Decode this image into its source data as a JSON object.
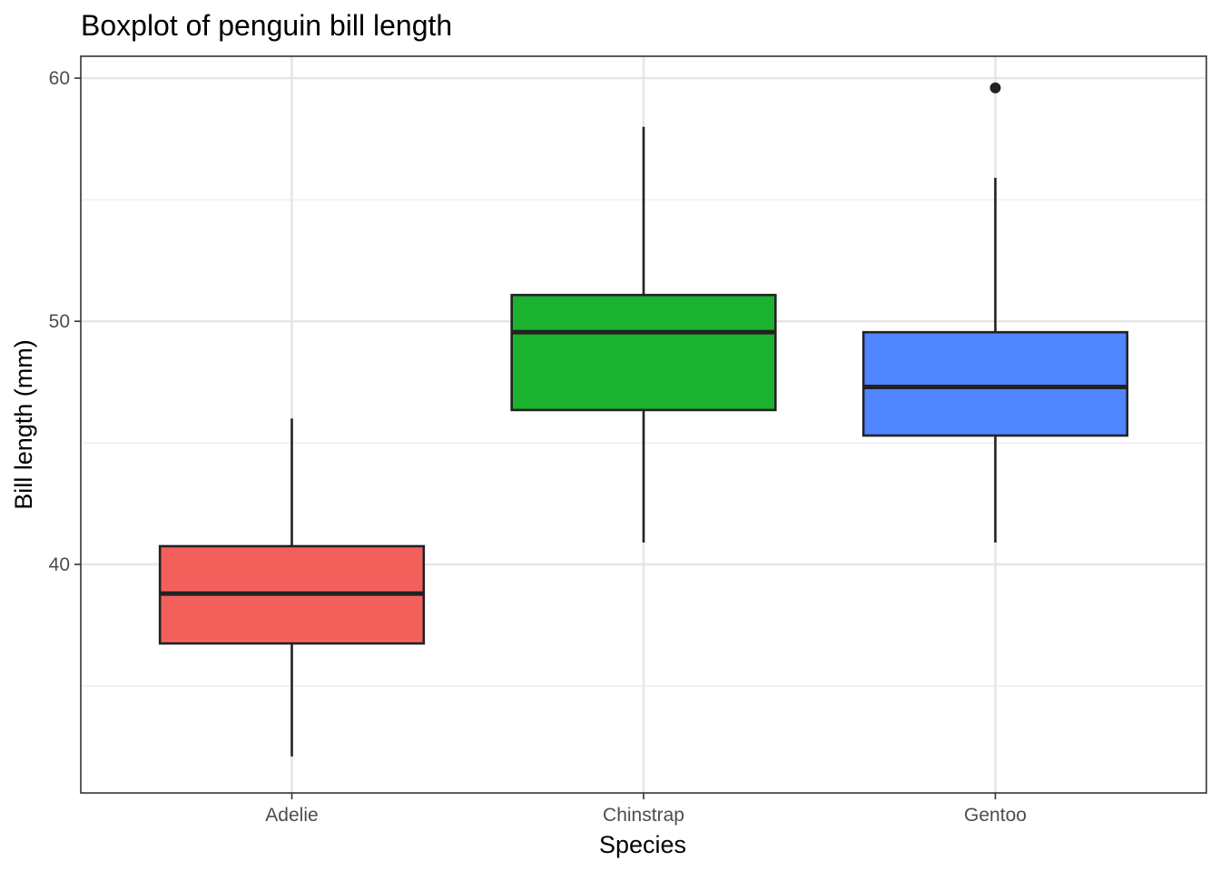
{
  "chart_data": {
    "type": "boxplot",
    "title": "Boxplot of penguin bill length",
    "xlabel": "Species",
    "ylabel": "Bill length (mm)",
    "categories": [
      "Adelie",
      "Chinstrap",
      "Gentoo"
    ],
    "ylim": [
      30.6,
      60.9
    ],
    "y_ticks": [
      40,
      50,
      60
    ],
    "y_tick_labels": [
      "40",
      "50",
      "60"
    ],
    "grid": true,
    "boxes": [
      {
        "category": "Adelie",
        "color": "#F3605C",
        "whisker_low": 32.1,
        "q1": 36.75,
        "median": 38.8,
        "q3": 40.75,
        "whisker_high": 46.0,
        "outliers": []
      },
      {
        "category": "Chinstrap",
        "color": "#1AB22F",
        "whisker_low": 40.9,
        "q1": 46.35,
        "median": 49.55,
        "q3": 51.08,
        "whisker_high": 58.0,
        "outliers": []
      },
      {
        "category": "Gentoo",
        "color": "#4F86FF",
        "whisker_low": 40.9,
        "q1": 45.3,
        "median": 47.3,
        "q3": 49.55,
        "whisker_high": 55.9,
        "outliers": [
          59.6
        ]
      }
    ]
  }
}
